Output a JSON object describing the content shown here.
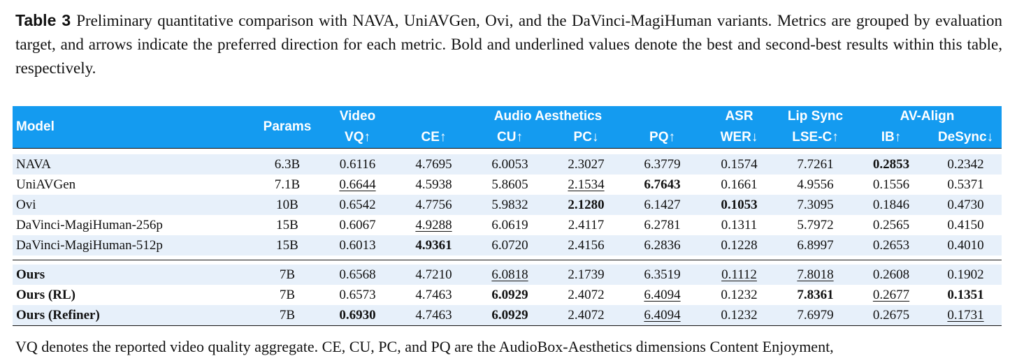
{
  "caption": {
    "label": "Table 3",
    "text": "Preliminary quantitative comparison with NAVA, UniAVGen, Ovi, and the DaVinci-MagiHuman variants. Metrics are grouped by evaluation target, and arrows indicate the preferred direction for each metric. Bold and underlined values denote the best and second-best results within this table, respectively."
  },
  "table": {
    "group_headers": [
      "Model",
      "Params",
      "Video",
      "Audio Aesthetics",
      "ASR",
      "Lip Sync",
      "AV-Align"
    ],
    "headers": [
      "VQ↑",
      "CE↑",
      "CU↑",
      "PC↓",
      "PQ↑",
      "WER↓",
      "LSE-C↑",
      "IB↑",
      "DeSync↓"
    ],
    "sections": [
      {
        "rows": [
          {
            "model": "NAVA",
            "model_bold": false,
            "shaded": true,
            "cells": [
              "6.3B",
              "0.6116",
              "4.7695",
              "6.0053",
              "2.3027",
              "6.3779",
              "0.1574",
              "7.7261",
              "0.2853",
              "0.2342"
            ],
            "bold": [
              8
            ],
            "underline": []
          },
          {
            "model": "UniAVGen",
            "model_bold": false,
            "shaded": false,
            "cells": [
              "7.1B",
              "0.6644",
              "4.5938",
              "5.8605",
              "2.1534",
              "6.7643",
              "0.1661",
              "4.9556",
              "0.1556",
              "0.5371"
            ],
            "bold": [
              5
            ],
            "underline": [
              1,
              4
            ]
          },
          {
            "model": "Ovi",
            "model_bold": false,
            "shaded": true,
            "cells": [
              "10B",
              "0.6542",
              "4.7756",
              "5.9832",
              "2.1280",
              "6.1427",
              "0.1053",
              "7.3095",
              "0.1846",
              "0.4730"
            ],
            "bold": [
              4,
              6
            ],
            "underline": []
          },
          {
            "model": "DaVinci-MagiHuman-256p",
            "model_bold": false,
            "shaded": false,
            "cells": [
              "15B",
              "0.6067",
              "4.9288",
              "6.0619",
              "2.4117",
              "6.2781",
              "0.1311",
              "5.7972",
              "0.2565",
              "0.4150"
            ],
            "bold": [],
            "underline": [
              2
            ]
          },
          {
            "model": "DaVinci-MagiHuman-512p",
            "model_bold": false,
            "shaded": true,
            "cells": [
              "15B",
              "0.6013",
              "4.9361",
              "6.0720",
              "2.4156",
              "6.2836",
              "0.1228",
              "6.8997",
              "0.2653",
              "0.4010"
            ],
            "bold": [
              2
            ],
            "underline": []
          }
        ]
      },
      {
        "rows": [
          {
            "model": "Ours",
            "model_bold": true,
            "shaded": true,
            "cells": [
              "7B",
              "0.6568",
              "4.7210",
              "6.0818",
              "2.1739",
              "6.3519",
              "0.1112",
              "7.8018",
              "0.2608",
              "0.1902"
            ],
            "bold": [],
            "underline": [
              3,
              6,
              7
            ]
          },
          {
            "model": "Ours (RL)",
            "model_bold": true,
            "shaded": false,
            "cells": [
              "7B",
              "0.6573",
              "4.7463",
              "6.0929",
              "2.4072",
              "6.4094",
              "0.1232",
              "7.8361",
              "0.2677",
              "0.1351"
            ],
            "bold": [
              3,
              7,
              9
            ],
            "underline": [
              5,
              8
            ]
          },
          {
            "model": "Ours (Refiner)",
            "model_bold": true,
            "shaded": true,
            "cells": [
              "7B",
              "0.6930",
              "4.7463",
              "6.0929",
              "2.4072",
              "6.4094",
              "0.1232",
              "7.6979",
              "0.2675",
              "0.1731"
            ],
            "bold": [
              1,
              3
            ],
            "underline": [
              5,
              9
            ]
          }
        ]
      }
    ]
  },
  "footnote": "VQ denotes the reported video quality aggregate. CE, CU, PC, and PQ are the AudioBox-Aesthetics dimensions Content Enjoyment,"
}
